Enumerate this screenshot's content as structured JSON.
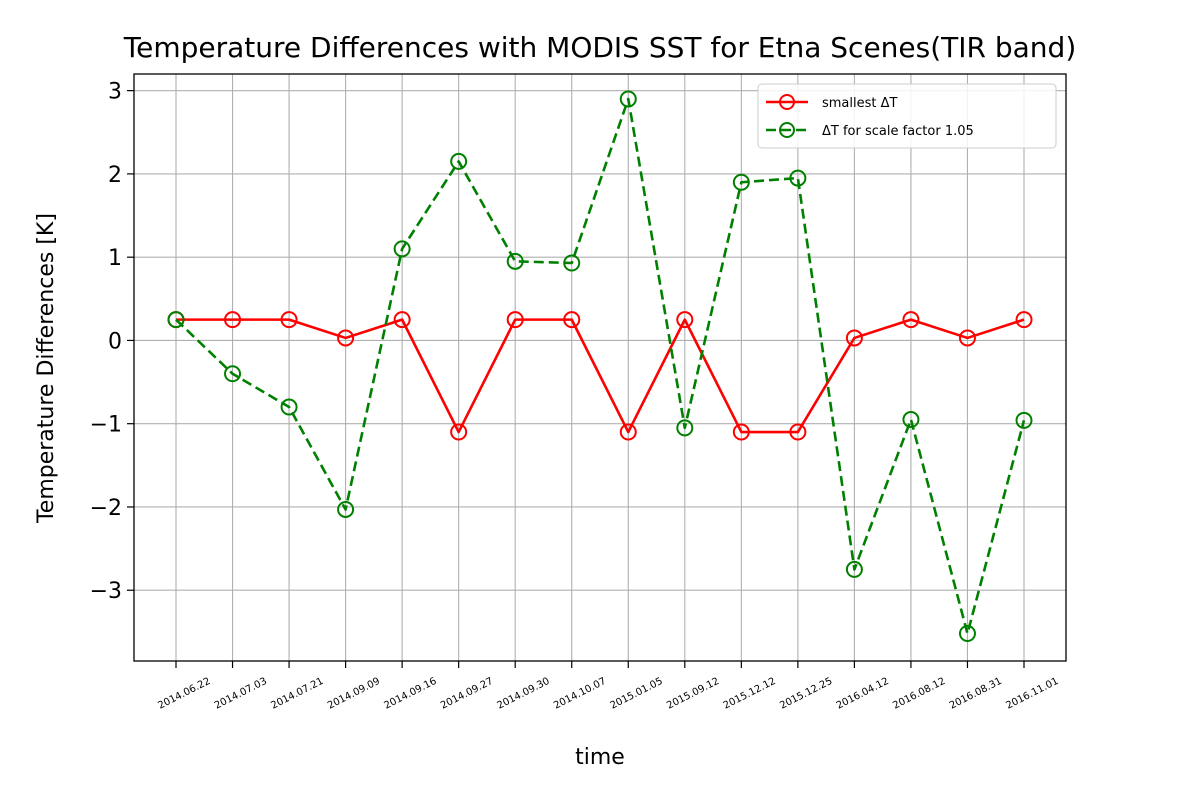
{
  "chart_data": {
    "type": "line",
    "title": "Temperature Differences with MODIS SST for Etna Scenes(TIR band)",
    "xlabel": "time",
    "ylabel": "Temperature Differences [K]",
    "categories": [
      "2014.06.22",
      "2014.07.03",
      "2014.07.21",
      "2014.09.09",
      "2014.09.16",
      "2014.09.27",
      "2014.09.30",
      "2014.10.07",
      "2015.01.05",
      "2015.09.12",
      "2015.12.12",
      "2015.12.25",
      "2016.04.12",
      "2016.08.12",
      "2016.08.31",
      "2016.11.01"
    ],
    "ylim": [
      -3.85,
      3.2
    ],
    "yticks": [
      -3,
      -2,
      -1,
      0,
      1,
      2,
      3
    ],
    "ytick_labels": [
      "−3",
      "−2",
      "−1",
      "0",
      "1",
      "2",
      "3"
    ],
    "grid": true,
    "legend_position": "top-right",
    "series": [
      {
        "name": "smallest ΔT",
        "color": "#ff0000",
        "dashed": false,
        "values": [
          0.25,
          0.25,
          0.25,
          0.03,
          0.25,
          -1.1,
          0.25,
          0.25,
          -1.1,
          0.25,
          -1.1,
          -1.1,
          0.03,
          0.25,
          0.03,
          0.25
        ]
      },
      {
        "name": "ΔT for scale factor 1.05",
        "color": "#008000",
        "dashed": true,
        "values": [
          0.25,
          -0.4,
          -0.8,
          -2.03,
          1.1,
          2.15,
          0.95,
          0.93,
          2.9,
          -1.05,
          1.9,
          1.95,
          -2.75,
          -0.95,
          -3.52,
          -0.96
        ]
      }
    ]
  }
}
